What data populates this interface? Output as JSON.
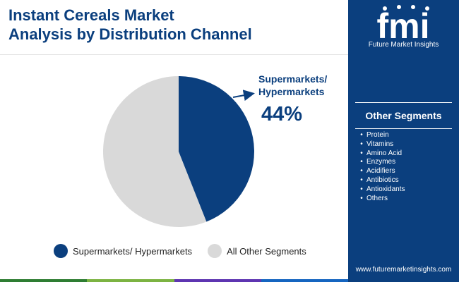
{
  "title": {
    "line1": "Instant Cereals Market",
    "line2": "Analysis by Distribution Channel"
  },
  "colors": {
    "primary": "#0b3f7e",
    "secondary": "#d9d9d9",
    "bottom_bar": [
      "#2e7d32",
      "#7cb342",
      "#5e35b1",
      "#1565c0"
    ]
  },
  "chart_data": {
    "type": "pie",
    "categories": [
      "Supermarkets/ Hypermarkets",
      "All Other Segments"
    ],
    "values": [
      44,
      56
    ],
    "colors": [
      "#0b3f7e",
      "#d9d9d9"
    ],
    "legend": "bottom",
    "callout": {
      "label_line1": "Supermarkets/",
      "label_line2": "Hypermarkets",
      "value": "44%"
    }
  },
  "sidebar": {
    "logo_text": "fmi",
    "logo_tagline": "Future Market Insights",
    "other_title": "Other Segments",
    "segments": [
      "Protein",
      "Vitamins",
      "Amino Acid",
      "Enzymes",
      "Acidifiers",
      "Antibiotics",
      "Antioxidants",
      "Others"
    ],
    "website": "www.futuremarketinsights.com"
  }
}
